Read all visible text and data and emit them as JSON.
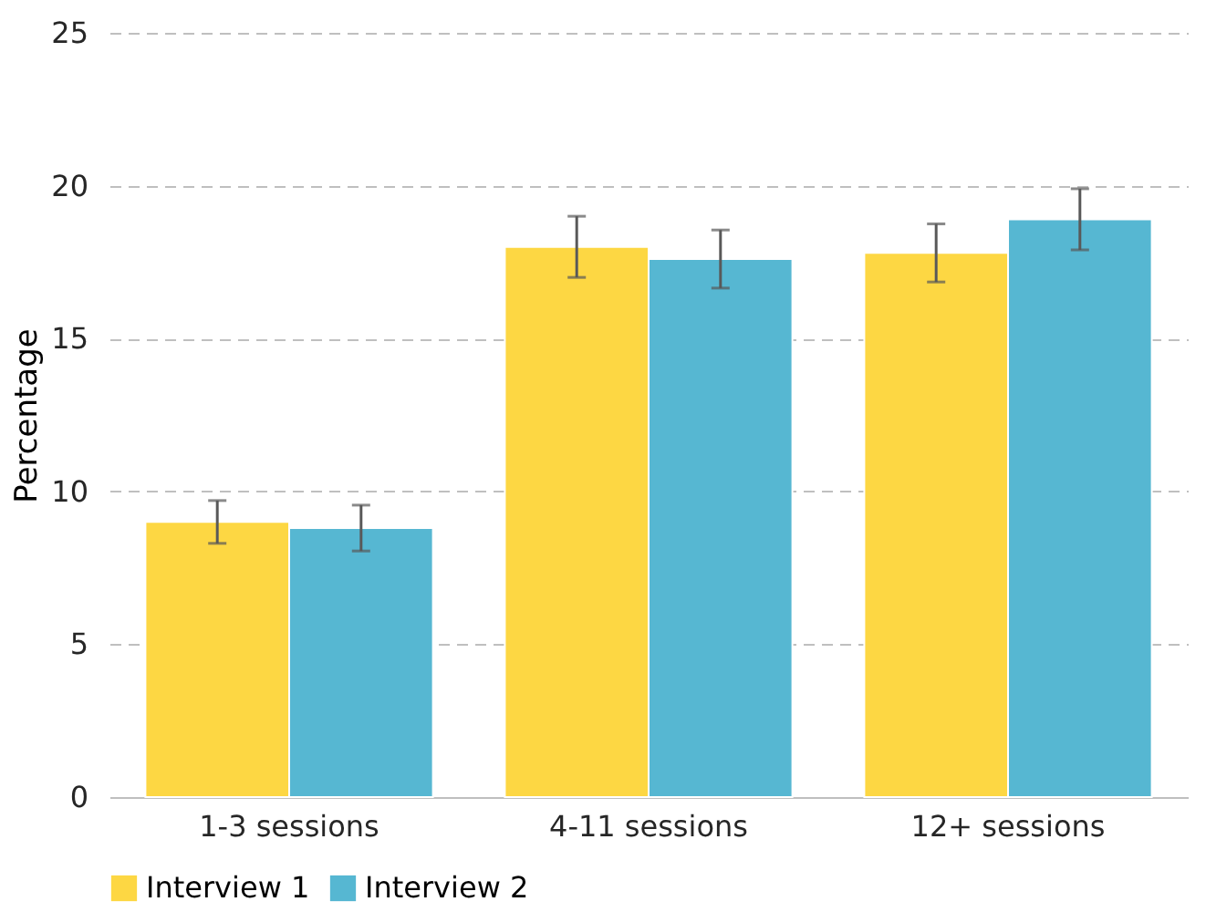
{
  "chart_data": {
    "type": "bar",
    "ylabel": "Percentage",
    "categories": [
      "1-3 sessions",
      "4-11 sessions",
      "12+ sessions"
    ],
    "series": [
      {
        "name": "Interview 1",
        "color": "#fdd743",
        "values": [
          9.0,
          18.0,
          17.8
        ],
        "errors": [
          0.7,
          1.0,
          0.95
        ]
      },
      {
        "name": "Interview 2",
        "color": "#56b7d2",
        "values": [
          8.8,
          17.6,
          18.9
        ],
        "errors": [
          0.75,
          0.95,
          1.0
        ]
      }
    ],
    "ylim": [
      0,
      25
    ],
    "yticks": [
      0,
      5,
      10,
      15,
      20,
      25
    ],
    "grid": "y",
    "legend": "bottom"
  }
}
